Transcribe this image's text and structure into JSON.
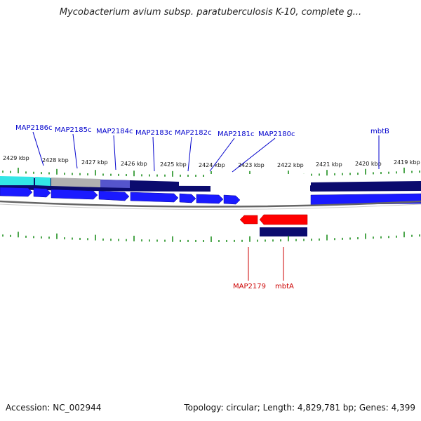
{
  "title": "Mycobacterium avium subsp. paratuberculosis K-10, complete g...",
  "footer": {
    "accession": "Accession: NC_002944",
    "summary": "Topology: circular; Length: 4,829,781 bp; Genes: 4,399"
  },
  "kbp_labels": [
    "2429 kbp",
    "2428 kbp",
    "2427 kbp",
    "2426 kbp",
    "2425 kbp",
    "2424 kbp",
    "2423 kbp",
    "2422 kbp",
    "2421 kbp",
    "2420 kbp",
    "2419 kbp"
  ],
  "forward_gene_labels": [
    "MAP2186c",
    "MAP2185c",
    "MAP2184c",
    "MAP2183c",
    "MAP2182c",
    "MAP2181c",
    "MAP2180c",
    "mbtB"
  ],
  "reverse_gene_labels": [
    "MAP2179",
    "mbtA"
  ],
  "colors": {
    "forward_label": "#0000cc",
    "reverse_label": "#cc0000",
    "forward_gene": "#1a1aff",
    "reverse_gene": "#ff0000",
    "navy": "#0b0b6e",
    "cyan": "#33e6e6",
    "gray": "#b0b0b0",
    "tick": "#118811"
  }
}
